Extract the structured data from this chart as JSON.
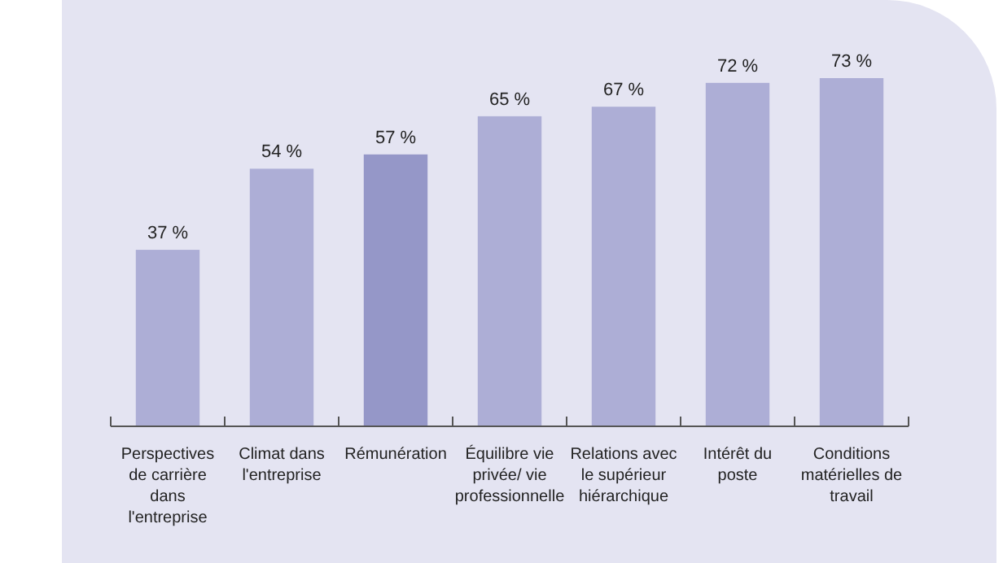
{
  "chart_data": {
    "type": "bar",
    "categories": [
      "Perspectives de carrière dans l'entreprise",
      "Climat dans l'entreprise",
      "Rémunération",
      "Équilibre vie privée/ vie professionnelle",
      "Relations avec le supérieur hiérarchique",
      "Intérêt du poste",
      "Conditions matérielles de travail"
    ],
    "values": [
      37,
      54,
      57,
      65,
      67,
      72,
      73
    ],
    "value_labels": [
      "37 %",
      "54 %",
      "57 %",
      "65 %",
      "67 %",
      "72 %",
      "73 %"
    ],
    "colors": [
      "#adaed6",
      "#adaed6",
      "#9597c8",
      "#adaed6",
      "#adaed6",
      "#adaed6",
      "#adaed6"
    ]
  }
}
